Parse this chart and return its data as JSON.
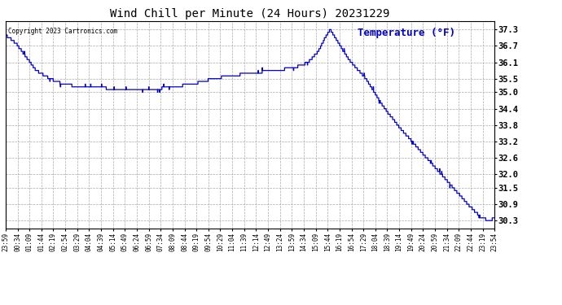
{
  "title": "Wind Chill per Minute (24 Hours) 20231229",
  "ylabel": "Temperature (°F)",
  "line_color": "#0000cc",
  "background_color": "#ffffff",
  "grid_color": "#aaaaaa",
  "copyright_text": "Copyright 2023 Cartronics.com",
  "yticks": [
    30.3,
    30.9,
    31.5,
    32.0,
    32.6,
    33.2,
    33.8,
    34.4,
    35.0,
    35.5,
    36.1,
    36.7,
    37.3
  ],
  "ylim": [
    30.0,
    37.6
  ],
  "xtick_labels": [
    "23:59",
    "00:34",
    "01:09",
    "01:44",
    "02:19",
    "02:54",
    "03:29",
    "04:04",
    "04:39",
    "05:14",
    "05:49",
    "06:24",
    "06:59",
    "07:34",
    "08:09",
    "08:44",
    "09:19",
    "09:54",
    "10:29",
    "11:04",
    "11:39",
    "12:14",
    "12:49",
    "13:24",
    "13:59",
    "14:34",
    "15:09",
    "15:44",
    "16:19",
    "16:54",
    "17:29",
    "18:04",
    "18:39",
    "19:14",
    "19:49",
    "20:24",
    "20:59",
    "21:34",
    "22:09",
    "22:44",
    "23:19",
    "23:54"
  ],
  "waypoints_x": [
    0,
    30,
    60,
    90,
    130,
    170,
    220,
    270,
    320,
    380,
    430,
    490,
    550,
    610,
    660,
    720,
    790,
    850,
    890,
    920,
    940,
    955,
    970,
    1010,
    1060,
    1110,
    1160,
    1210,
    1260,
    1310,
    1360,
    1400,
    1425,
    1439
  ],
  "waypoints_y": [
    37.1,
    36.8,
    36.3,
    35.8,
    35.5,
    35.3,
    35.2,
    35.2,
    35.1,
    35.1,
    35.1,
    35.2,
    35.3,
    35.5,
    35.6,
    35.7,
    35.8,
    35.9,
    36.1,
    36.5,
    37.0,
    37.3,
    37.0,
    36.2,
    35.5,
    34.5,
    33.7,
    33.0,
    32.3,
    31.6,
    30.9,
    30.4,
    30.3,
    30.4
  ],
  "figsize": [
    6.9,
    3.75
  ],
  "dpi": 100
}
